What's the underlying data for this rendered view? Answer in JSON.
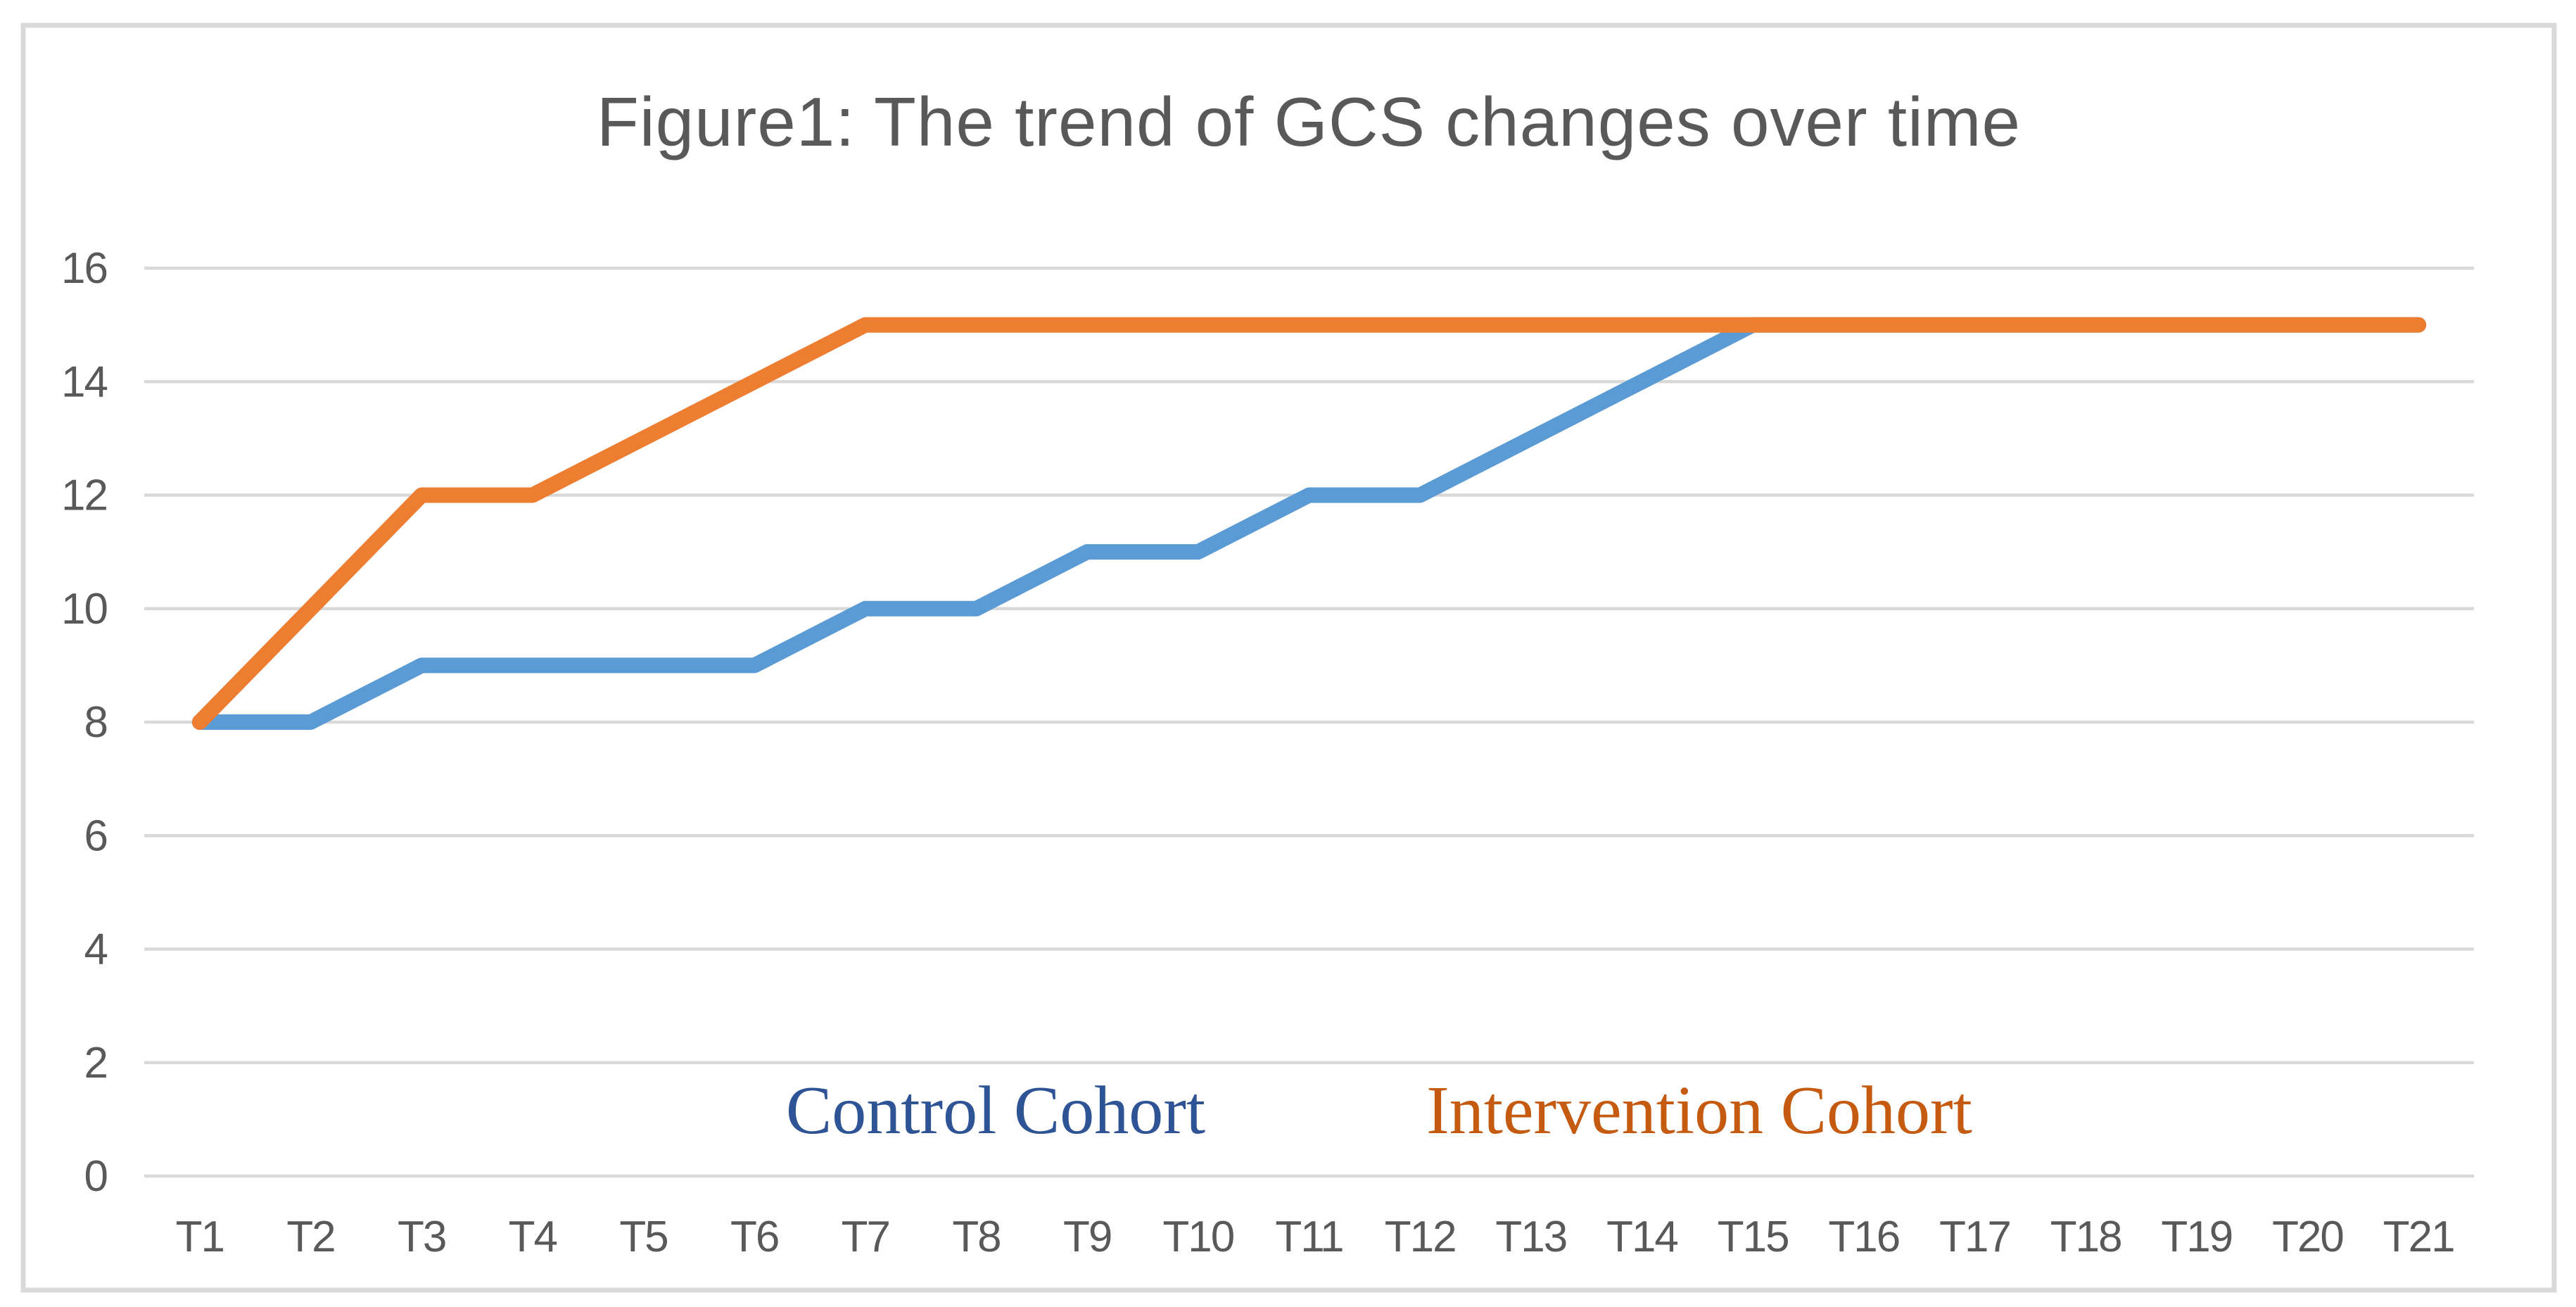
{
  "chart_data": {
    "type": "line",
    "title": "Figure1: The trend of GCS changes over time",
    "title_color": "#595959",
    "categories": [
      "T1",
      "T2",
      "T3",
      "T4",
      "T5",
      "T6",
      "T7",
      "T8",
      "T9",
      "T10",
      "T11",
      "T12",
      "T13",
      "T14",
      "T15",
      "T16",
      "T17",
      "T18",
      "T19",
      "T20",
      "T21"
    ],
    "series": [
      {
        "name": "Control Cohort",
        "color": "#5B9BD5",
        "label_color": "#2F5496",
        "values": [
          8,
          8,
          9,
          9,
          9,
          9,
          10,
          10,
          11,
          11,
          12,
          12,
          13,
          14,
          15,
          15,
          15,
          15,
          15,
          15,
          15
        ]
      },
      {
        "name": "Intervention Cohort",
        "color": "#ED7D31",
        "label_color": "#C55A11",
        "values": [
          8,
          10,
          12,
          12,
          13,
          14,
          15,
          15,
          15,
          15,
          15,
          15,
          15,
          15,
          15,
          15,
          15,
          15,
          15,
          15,
          15
        ]
      }
    ],
    "xlabel": "",
    "ylabel": "",
    "ylim": [
      0,
      16
    ],
    "ytick_step": 2,
    "yticks": [
      "16",
      "14",
      "12",
      "10",
      "8",
      "6",
      "4",
      "2",
      "0"
    ],
    "grid": true,
    "gridline_color": "#D9D9D9",
    "border_color": "#D9D9D9",
    "axis_label_color": "#595959",
    "legend_position": "inside-bottom",
    "legend_style": "colored-text-labels"
  }
}
